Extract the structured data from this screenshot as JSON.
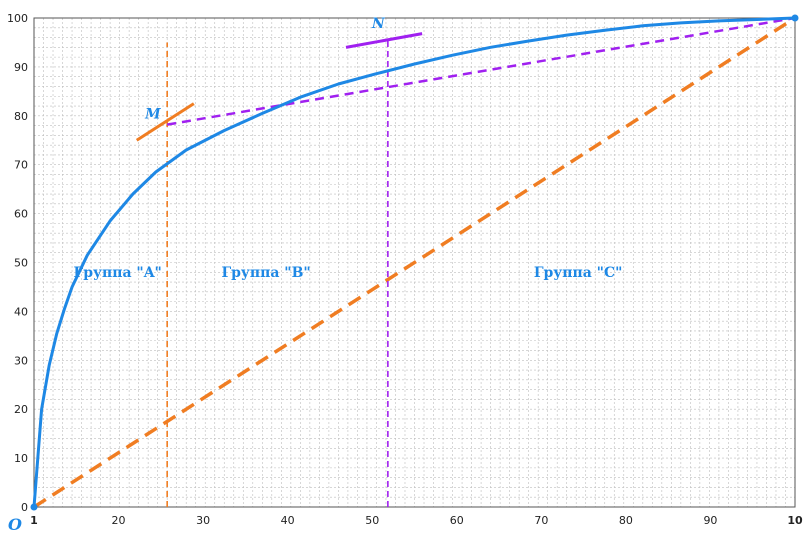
{
  "chart_data": {
    "type": "line",
    "title": "",
    "xlabel": "",
    "ylabel": "",
    "x_ticks": [
      "1",
      "20",
      "30",
      "40",
      "50",
      "60",
      "70",
      "80",
      "90",
      "10"
    ],
    "y_ticks": [
      "0",
      "10",
      "20",
      "30",
      "40",
      "50",
      "60",
      "70",
      "80",
      "90",
      "100"
    ],
    "ylim": [
      0,
      100
    ],
    "grid": true,
    "origin_label": "O",
    "colors": {
      "curve": "#1e88e5",
      "diagonal": "#f07d22",
      "orange_vline": "#f07d22",
      "purple": "#a020f0",
      "grid": "#bdbdbd"
    },
    "series": [
      {
        "id": "curve",
        "points": [
          [
            0,
            0
          ],
          [
            1,
            20
          ],
          [
            2,
            29
          ],
          [
            3,
            35.5
          ],
          [
            4,
            40.5
          ],
          [
            5,
            45
          ],
          [
            7,
            51.5
          ],
          [
            10,
            58.5
          ],
          [
            13,
            64
          ],
          [
            16,
            68.5
          ],
          [
            20,
            73
          ],
          [
            25,
            77
          ],
          [
            30,
            80.5
          ],
          [
            35,
            83.8
          ],
          [
            40,
            86.5
          ],
          [
            45,
            88.6
          ],
          [
            50,
            90.6
          ],
          [
            55,
            92.4
          ],
          [
            60,
            94
          ],
          [
            65,
            95.3
          ],
          [
            70,
            96.5
          ],
          [
            75,
            97.5
          ],
          [
            80,
            98.4
          ],
          [
            85,
            99
          ],
          [
            90,
            99.4
          ],
          [
            95,
            99.7
          ],
          [
            100,
            100
          ]
        ]
      },
      {
        "id": "diagonal",
        "points": [
          [
            0,
            0
          ],
          [
            100,
            100
          ]
        ]
      }
    ],
    "vlines": [
      {
        "id": "A-boundary",
        "x": 17.5,
        "y_from": 0,
        "y_to": 95
      },
      {
        "id": "B-boundary",
        "x": 46.5,
        "y_from": 0,
        "y_to": 96
      }
    ],
    "chord": {
      "from": [
        17.5,
        78.2
      ],
      "to": [
        100,
        100
      ]
    },
    "tangents": [
      {
        "id": "M",
        "from": [
          13.5,
          75
        ],
        "to": [
          21,
          82.5
        ]
      },
      {
        "id": "N",
        "from": [
          41,
          94
        ],
        "to": [
          51,
          96.8
        ]
      }
    ],
    "points": [
      {
        "label": "M",
        "x": 17.5,
        "y": 78.2
      },
      {
        "label": "N",
        "x": 46.5,
        "y": 95.5
      }
    ],
    "groups": [
      {
        "label": "Группа \"A\"",
        "x": 11,
        "y": 47
      },
      {
        "label": "Группа \"B\"",
        "x": 30.5,
        "y": 47
      },
      {
        "label": "Группа \"C\"",
        "x": 71.5,
        "y": 47
      }
    ]
  }
}
